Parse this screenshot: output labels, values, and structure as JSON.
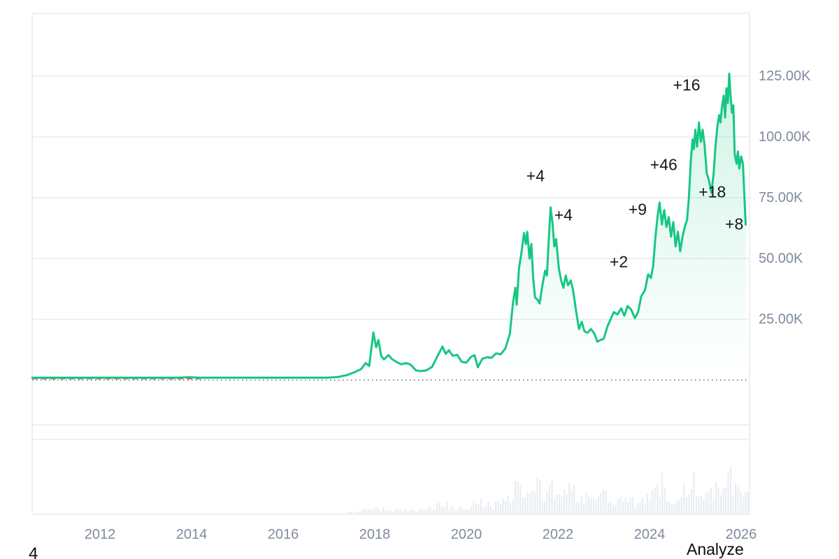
{
  "footer": {
    "analyze_label": "Analyze",
    "corner_text": "4"
  },
  "chart_data": {
    "type": "area",
    "title": "",
    "asset": "price-history",
    "x_axis": {
      "ticks": [
        2012,
        2014,
        2016,
        2018,
        2020,
        2022,
        2024,
        2026
      ],
      "range_years": [
        2010.52,
        2026.12
      ]
    },
    "y_axis": {
      "unit": "K",
      "ticks": [
        {
          "label": "125.00K",
          "value": 125
        },
        {
          "label": "100.00K",
          "value": 100
        },
        {
          "label": "75.00K",
          "value": 75
        },
        {
          "label": "50.00K",
          "value": 50
        },
        {
          "label": "25.00K",
          "value": 25
        }
      ],
      "text_color": "#808a9d"
    },
    "grid": {
      "color": "#e9ebee",
      "horizontal_on": true,
      "vertical_on": false
    },
    "baseline": {
      "style": "dotted",
      "value": 0,
      "color": "#8a8d91"
    },
    "red_dashed_segment": {
      "from_year": 2010.52,
      "to_year": 2014.2,
      "value": 0,
      "color": "#ea3943"
    },
    "series": [
      {
        "name": "price",
        "color": "#16c784",
        "fill_rgb": "22,199,132",
        "points_year_priceK": [
          [
            2010.52,
            0.1
          ],
          [
            2011.3,
            0.1
          ],
          [
            2012.2,
            0.1
          ],
          [
            2013.0,
            0.1
          ],
          [
            2013.35,
            0.3
          ],
          [
            2013.7,
            0.2
          ],
          [
            2013.95,
            1.2
          ],
          [
            2014.15,
            0.9
          ],
          [
            2014.6,
            0.5
          ],
          [
            2015.1,
            0.25
          ],
          [
            2015.6,
            0.3
          ],
          [
            2016.1,
            0.45
          ],
          [
            2016.6,
            0.7
          ],
          [
            2016.95,
            0.97
          ],
          [
            2017.2,
            1.3
          ],
          [
            2017.4,
            2.1
          ],
          [
            2017.55,
            3.2
          ],
          [
            2017.7,
            4.5
          ],
          [
            2017.8,
            7.0
          ],
          [
            2017.88,
            5.8
          ],
          [
            2017.97,
            19.6
          ],
          [
            2018.03,
            13.5
          ],
          [
            2018.08,
            16.5
          ],
          [
            2018.14,
            10.0
          ],
          [
            2018.2,
            8.5
          ],
          [
            2018.3,
            10.3
          ],
          [
            2018.38,
            8.6
          ],
          [
            2018.48,
            7.4
          ],
          [
            2018.58,
            6.5
          ],
          [
            2018.68,
            7.0
          ],
          [
            2018.78,
            6.4
          ],
          [
            2018.9,
            4.0
          ],
          [
            2019.0,
            3.7
          ],
          [
            2019.12,
            4.0
          ],
          [
            2019.25,
            5.4
          ],
          [
            2019.4,
            11.0
          ],
          [
            2019.48,
            13.8
          ],
          [
            2019.55,
            10.8
          ],
          [
            2019.62,
            12.3
          ],
          [
            2019.7,
            10.0
          ],
          [
            2019.8,
            10.4
          ],
          [
            2019.9,
            7.5
          ],
          [
            2020.0,
            7.2
          ],
          [
            2020.1,
            9.5
          ],
          [
            2020.18,
            10.3
          ],
          [
            2020.25,
            5.3
          ],
          [
            2020.35,
            8.8
          ],
          [
            2020.45,
            9.4
          ],
          [
            2020.55,
            9.2
          ],
          [
            2020.65,
            11.0
          ],
          [
            2020.75,
            10.6
          ],
          [
            2020.85,
            13.0
          ],
          [
            2020.95,
            19.0
          ],
          [
            2021.02,
            32
          ],
          [
            2021.07,
            38
          ],
          [
            2021.1,
            31
          ],
          [
            2021.15,
            46
          ],
          [
            2021.2,
            52
          ],
          [
            2021.26,
            60.5
          ],
          [
            2021.3,
            56
          ],
          [
            2021.33,
            61
          ],
          [
            2021.38,
            50
          ],
          [
            2021.42,
            56
          ],
          [
            2021.46,
            42
          ],
          [
            2021.5,
            34
          ],
          [
            2021.56,
            33
          ],
          [
            2021.6,
            31.5
          ],
          [
            2021.66,
            39
          ],
          [
            2021.72,
            45
          ],
          [
            2021.76,
            43
          ],
          [
            2021.8,
            58
          ],
          [
            2021.84,
            71
          ],
          [
            2021.88,
            65
          ],
          [
            2021.92,
            55
          ],
          [
            2021.96,
            58
          ],
          [
            2022.02,
            46
          ],
          [
            2022.07,
            41
          ],
          [
            2022.12,
            38
          ],
          [
            2022.17,
            43
          ],
          [
            2022.22,
            39
          ],
          [
            2022.28,
            41
          ],
          [
            2022.33,
            37
          ],
          [
            2022.4,
            28
          ],
          [
            2022.46,
            21
          ],
          [
            2022.52,
            24
          ],
          [
            2022.58,
            20
          ],
          [
            2022.65,
            19.5
          ],
          [
            2022.72,
            21
          ],
          [
            2022.8,
            19
          ],
          [
            2022.86,
            15.8
          ],
          [
            2022.93,
            16.5
          ],
          [
            2023.0,
            17
          ],
          [
            2023.08,
            22
          ],
          [
            2023.15,
            25
          ],
          [
            2023.22,
            28
          ],
          [
            2023.3,
            27
          ],
          [
            2023.38,
            29.5
          ],
          [
            2023.45,
            26.5
          ],
          [
            2023.52,
            30.5
          ],
          [
            2023.6,
            29
          ],
          [
            2023.68,
            25.5
          ],
          [
            2023.75,
            28
          ],
          [
            2023.82,
            34.5
          ],
          [
            2023.9,
            37
          ],
          [
            2023.97,
            43.5
          ],
          [
            2024.03,
            42
          ],
          [
            2024.08,
            47
          ],
          [
            2024.13,
            59
          ],
          [
            2024.18,
            68
          ],
          [
            2024.22,
            73
          ],
          [
            2024.27,
            64
          ],
          [
            2024.32,
            70
          ],
          [
            2024.37,
            63
          ],
          [
            2024.42,
            67
          ],
          [
            2024.47,
            59
          ],
          [
            2024.52,
            65
          ],
          [
            2024.57,
            55
          ],
          [
            2024.62,
            61
          ],
          [
            2024.67,
            53
          ],
          [
            2024.72,
            59
          ],
          [
            2024.77,
            63
          ],
          [
            2024.82,
            66
          ],
          [
            2024.86,
            75
          ],
          [
            2024.9,
            90
          ],
          [
            2024.94,
            99
          ],
          [
            2024.97,
            95
          ],
          [
            2025.0,
            103
          ],
          [
            2025.04,
            96
          ],
          [
            2025.08,
            106
          ],
          [
            2025.12,
            98
          ],
          [
            2025.16,
            103
          ],
          [
            2025.2,
            97
          ],
          [
            2025.25,
            85
          ],
          [
            2025.3,
            82
          ],
          [
            2025.35,
            77
          ],
          [
            2025.4,
            85
          ],
          [
            2025.44,
            96
          ],
          [
            2025.48,
            104
          ],
          [
            2025.52,
            109
          ],
          [
            2025.55,
            106
          ],
          [
            2025.58,
            112
          ],
          [
            2025.62,
            117
          ],
          [
            2025.65,
            108
          ],
          [
            2025.68,
            120
          ],
          [
            2025.71,
            114
          ],
          [
            2025.74,
            126
          ],
          [
            2025.77,
            117
          ],
          [
            2025.8,
            110
          ],
          [
            2025.83,
            113
          ],
          [
            2025.86,
            93
          ],
          [
            2025.9,
            89
          ],
          [
            2025.93,
            94
          ],
          [
            2025.96,
            87
          ],
          [
            2026.0,
            92
          ],
          [
            2026.04,
            89
          ],
          [
            2026.07,
            76
          ],
          [
            2026.1,
            64
          ]
        ]
      }
    ],
    "annotations": [
      {
        "label": "+4",
        "year": 2021.51,
        "price": 83.8
      },
      {
        "label": "+4",
        "year": 2022.12,
        "price": 67.7
      },
      {
        "label": "+2",
        "year": 2023.33,
        "price": 48.7
      },
      {
        "label": "+9",
        "year": 2023.74,
        "price": 70.0
      },
      {
        "label": "+46",
        "year": 2024.31,
        "price": 88.4
      },
      {
        "label": "+16",
        "year": 2024.81,
        "price": 121.3
      },
      {
        "label": "+18",
        "year": 2025.37,
        "price": 77.2
      },
      {
        "label": "+8",
        "year": 2025.85,
        "price": 64.2
      }
    ],
    "volume": {
      "color": "#e9edf2",
      "envelope_year_height": [
        [
          2010.52,
          0
        ],
        [
          2017.0,
          0.5
        ],
        [
          2017.4,
          3
        ],
        [
          2017.7,
          8
        ],
        [
          2017.95,
          14
        ],
        [
          2018.1,
          11
        ],
        [
          2018.3,
          9
        ],
        [
          2018.6,
          8
        ],
        [
          2018.9,
          10
        ],
        [
          2019.2,
          12
        ],
        [
          2019.5,
          20
        ],
        [
          2019.75,
          14
        ],
        [
          2020.0,
          14
        ],
        [
          2020.3,
          28
        ],
        [
          2020.55,
          18
        ],
        [
          2020.8,
          24
        ],
        [
          2021.0,
          42
        ],
        [
          2021.15,
          68
        ],
        [
          2021.3,
          55
        ],
        [
          2021.5,
          72
        ],
        [
          2021.65,
          42
        ],
        [
          2021.85,
          55
        ],
        [
          2022.05,
          38
        ],
        [
          2022.35,
          52
        ],
        [
          2022.55,
          34
        ],
        [
          2022.85,
          44
        ],
        [
          2023.1,
          30
        ],
        [
          2023.4,
          25
        ],
        [
          2023.7,
          28
        ],
        [
          2023.95,
          38
        ],
        [
          2024.1,
          48
        ],
        [
          2024.22,
          72
        ],
        [
          2024.4,
          44
        ],
        [
          2024.6,
          36
        ],
        [
          2024.75,
          48
        ],
        [
          2024.92,
          95
        ],
        [
          2025.05,
          60
        ],
        [
          2025.2,
          48
        ],
        [
          2025.35,
          58
        ],
        [
          2025.5,
          44
        ],
        [
          2025.65,
          64
        ],
        [
          2025.75,
          85
        ],
        [
          2025.85,
          54
        ],
        [
          2025.95,
          66
        ],
        [
          2026.05,
          44
        ],
        [
          2026.1,
          38
        ]
      ]
    }
  }
}
